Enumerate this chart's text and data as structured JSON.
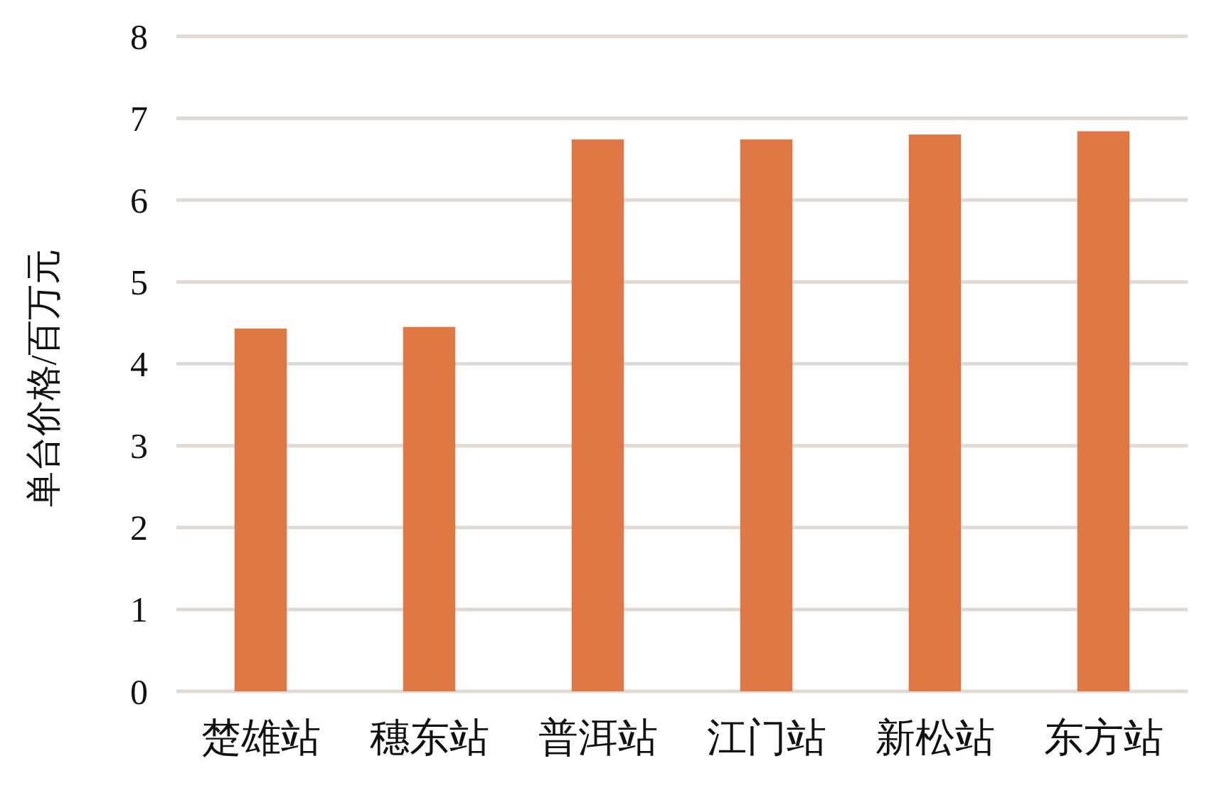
{
  "chart_data": {
    "type": "bar",
    "ylabel": "单台价格/百万元",
    "categories": [
      "楚雄站",
      "穗东站",
      "普洱站",
      "江门站",
      "新松站",
      "东方站"
    ],
    "values": [
      4.43,
      4.45,
      6.74,
      6.74,
      6.8,
      6.84
    ],
    "color": "#e07845",
    "ylim": [
      0,
      8
    ],
    "yticks": [
      0,
      1,
      2,
      3,
      4,
      5,
      6,
      7,
      8
    ],
    "grid": "y"
  }
}
